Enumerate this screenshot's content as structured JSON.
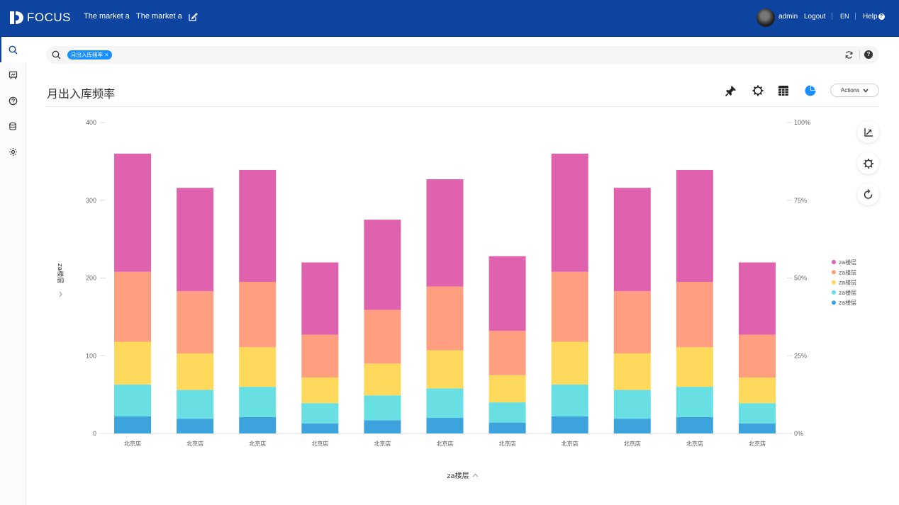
{
  "header": {
    "brand": "FOCUS",
    "nav": [
      "The market a",
      "The market a"
    ],
    "user": "admin",
    "logout": "Logout",
    "lang": "EN",
    "help": "Help"
  },
  "sidebar": {
    "icons": [
      "search-icon",
      "board-icon",
      "question-icon",
      "database-icon",
      "gear-icon"
    ]
  },
  "search": {
    "tag": "月出入库频率",
    "tag_close": "×"
  },
  "page": {
    "title": "月出入库频率",
    "actions_label": "Actions"
  },
  "colors": {
    "header": "#0c44a0",
    "accent": "#1c8fff"
  },
  "chart_data": {
    "type": "bar",
    "stacked": true,
    "categories": [
      "北京店",
      "北京店",
      "北京店",
      "北京店",
      "北京店",
      "北京店",
      "北京店",
      "北京店",
      "北京店",
      "北京店",
      "北京店"
    ],
    "series": [
      {
        "name": "za楼层",
        "color": "#3ca3dc",
        "values": [
          22,
          19,
          21,
          13,
          17,
          20,
          14,
          22,
          19,
          21,
          13
        ]
      },
      {
        "name": "za楼层",
        "color": "#67dfe3",
        "values": [
          41,
          37,
          39,
          26,
          32,
          38,
          26,
          41,
          37,
          39,
          26
        ]
      },
      {
        "name": "za楼层",
        "color": "#ffd95c",
        "values": [
          55,
          47,
          51,
          33,
          41,
          49,
          35,
          55,
          47,
          51,
          33
        ]
      },
      {
        "name": "za楼层",
        "color": "#ff9f7f",
        "values": [
          90,
          80,
          84,
          55,
          69,
          82,
          57,
          90,
          80,
          84,
          55
        ]
      },
      {
        "name": "za楼层",
        "color": "#e062ae",
        "values": [
          152,
          133,
          144,
          93,
          116,
          138,
          96,
          152,
          133,
          144,
          93
        ]
      }
    ],
    "xlabel": "za楼层",
    "ylabel": "za楼层",
    "ylim": [
      0,
      400
    ],
    "yticks": [
      "0",
      "100",
      "200",
      "300",
      "400"
    ],
    "y2ticks": [
      "0%",
      "25%",
      "50%",
      "75%",
      "100%"
    ],
    "legend_position": "right",
    "grid": false
  }
}
